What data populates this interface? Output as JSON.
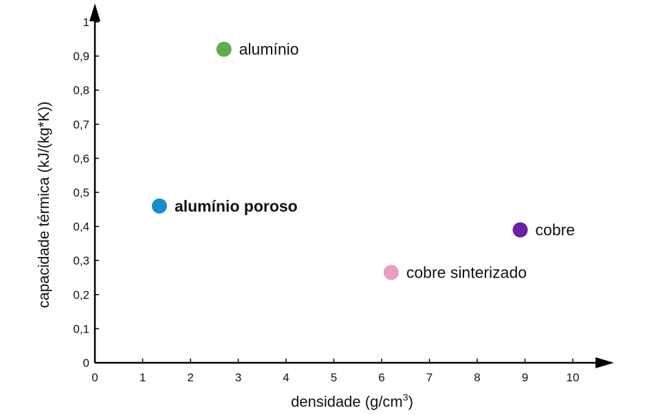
{
  "chart_data": {
    "type": "scatter",
    "title": "",
    "xlabel": "densidade (g/cm",
    "xlabel_sup": "3",
    "xlabel_close": ")",
    "ylabel": "capacidade térmica (kJ/(kg*K))",
    "xlim": [
      0,
      10
    ],
    "ylim": [
      0,
      1
    ],
    "x_ticks": [
      "0",
      "1",
      "2",
      "3",
      "4",
      "5",
      "6",
      "7",
      "8",
      "9",
      "10"
    ],
    "y_ticks": [
      "0",
      "0,1",
      "0,2",
      "0,3",
      "0,4",
      "0,5",
      "0,6",
      "0,7",
      "0,8",
      "0,9",
      "1"
    ],
    "grid": false,
    "points": [
      {
        "label": "alumínio",
        "x": 2.7,
        "y": 0.92,
        "color": "#5cb04a",
        "bold": false
      },
      {
        "label": "alumínio poroso",
        "x": 1.35,
        "y": 0.46,
        "color": "#1a8ccc",
        "bold": true
      },
      {
        "label": "cobre",
        "x": 8.9,
        "y": 0.39,
        "color": "#6a1fa8",
        "bold": false
      },
      {
        "label": "cobre sinterizado",
        "x": 6.2,
        "y": 0.265,
        "color": "#e89cc6",
        "bold": false
      }
    ]
  }
}
